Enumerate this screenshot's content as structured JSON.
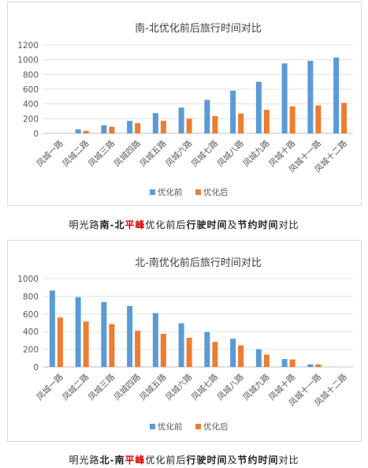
{
  "chart_data": [
    {
      "type": "bar",
      "title": "南-北优化前后旅行时间对比",
      "categories": [
        "凤城一路",
        "凤城二路",
        "凤城三路",
        "凤城四路",
        "凤城五路",
        "凤城六路",
        "凤城七路",
        "凤城八路",
        "凤城九路",
        "凤城十路",
        "凤城十一路",
        "凤城十二路"
      ],
      "series": [
        {
          "name": "优化前",
          "color": "#5b9bd5",
          "values": [
            0,
            55,
            110,
            170,
            275,
            350,
            455,
            580,
            700,
            950,
            985,
            1030
          ]
        },
        {
          "name": "优化后",
          "color": "#ed7d31",
          "values": [
            0,
            35,
            90,
            140,
            170,
            200,
            235,
            270,
            320,
            365,
            380,
            415
          ]
        }
      ],
      "ylim": [
        0,
        1200
      ],
      "yticks": [
        0,
        200,
        400,
        600,
        800,
        1000,
        1200
      ],
      "grid": true,
      "legend": "bottom"
    },
    {
      "type": "bar",
      "title": "北-南优化前后旅行时间对比",
      "categories": [
        "凤城一路",
        "凤城二路",
        "凤城三路",
        "凤城四路",
        "凤城五路",
        "凤城六路",
        "凤城七路",
        "凤城八路",
        "凤城九路",
        "凤城十路",
        "凤城十一路",
        "凤城十二路"
      ],
      "series": [
        {
          "name": "优化前",
          "color": "#5b9bd5",
          "values": [
            865,
            790,
            735,
            690,
            610,
            495,
            395,
            320,
            200,
            90,
            30,
            0
          ]
        },
        {
          "name": "优化后",
          "color": "#ed7d31",
          "values": [
            560,
            515,
            485,
            410,
            375,
            330,
            285,
            245,
            140,
            85,
            30,
            0
          ]
        }
      ],
      "ylim": [
        0,
        1000
      ],
      "yticks": [
        0,
        200,
        400,
        600,
        800,
        1000
      ],
      "grid": true,
      "legend": "bottom"
    }
  ],
  "captions": [
    {
      "parts": [
        {
          "text": "明光路",
          "style": "n"
        },
        {
          "text": "南-北",
          "style": "b"
        },
        {
          "text": "平峰",
          "style": "r"
        },
        {
          "text": "优化前后",
          "style": "n"
        },
        {
          "text": "行驶时间",
          "style": "b"
        },
        {
          "text": "及",
          "style": "n"
        },
        {
          "text": "节约时间",
          "style": "b"
        },
        {
          "text": "对比",
          "style": "n"
        }
      ]
    },
    {
      "parts": [
        {
          "text": "明光路",
          "style": "n"
        },
        {
          "text": "北-南",
          "style": "b"
        },
        {
          "text": "平峰",
          "style": "r"
        },
        {
          "text": "优化前后",
          "style": "n"
        },
        {
          "text": "行驶时间",
          "style": "b"
        },
        {
          "text": "及",
          "style": "n"
        },
        {
          "text": "节约时间",
          "style": "b"
        },
        {
          "text": "对比",
          "style": "n"
        }
      ]
    }
  ]
}
